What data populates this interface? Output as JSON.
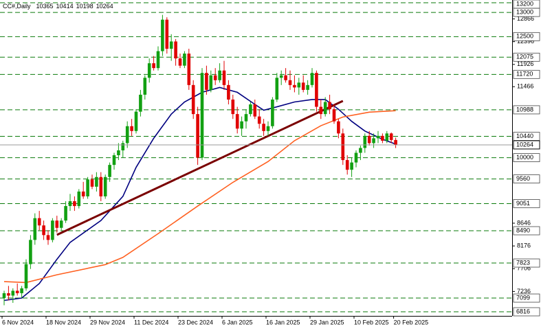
{
  "chart_data": {
    "type": "candlestick",
    "symbol": "CC#,Daily",
    "categories": [
      "6 Nov 2024",
      null,
      null,
      null,
      null,
      null,
      null,
      null,
      null,
      null,
      "18 Nov 2024",
      null,
      null,
      null,
      null,
      null,
      null,
      null,
      null,
      null,
      "29 Nov 2024",
      null,
      null,
      null,
      null,
      null,
      null,
      null,
      null,
      null,
      "11 Dec 2024",
      null,
      null,
      null,
      null,
      null,
      null,
      null,
      null,
      null,
      "23 Dec 2024",
      null,
      null,
      null,
      null,
      null,
      null,
      null,
      null,
      null,
      "6 Jan 2025",
      null,
      null,
      null,
      null,
      null,
      null,
      null,
      null,
      null,
      "16 Jan 2025",
      null,
      null,
      null,
      null,
      null,
      null,
      null,
      null,
      null,
      "29 Jan 2025",
      null,
      null,
      null,
      null,
      null,
      null,
      null,
      null,
      null,
      "10 Feb 2025",
      null,
      null,
      null,
      null,
      null,
      null,
      null,
      null,
      "20 Feb 2025"
    ],
    "open": [
      7100,
      7200,
      7150,
      7250,
      7200,
      7300,
      7800,
      8300,
      8750,
      8600,
      8400,
      8300,
      8700,
      8550,
      8700,
      9000,
      9100,
      9000,
      9300,
      9200,
      9550,
      9400,
      9600,
      9200,
      9600,
      9850,
      10050,
      10150,
      10300,
      10650,
      10550,
      10950,
      11300,
      11650,
      11950,
      11850,
      12200,
      12850,
      12250,
      12400,
      12050,
      11900,
      12150,
      11500,
      10900,
      10000,
      11750,
      11400,
      11700,
      11600,
      11800,
      11500,
      11200,
      10900,
      10600,
      10750,
      10900,
      11100,
      10850,
      10700,
      10550,
      10650,
      11200,
      11650,
      11700,
      11600,
      11500,
      11450,
      11550,
      11400,
      11500,
      11750,
      11050,
      10900,
      11150,
      11000,
      10750,
      10500,
      9950,
      9750,
      9900,
      10100,
      10200,
      10450,
      10300,
      10400,
      10450,
      10350,
      10500,
      10365
    ],
    "high": [
      7250,
      7350,
      7300,
      7400,
      7350,
      7900,
      8400,
      8850,
      8900,
      8700,
      8500,
      8750,
      8800,
      8750,
      9100,
      9250,
      9200,
      9350,
      9500,
      9600,
      9650,
      9700,
      9700,
      9650,
      9900,
      10100,
      10300,
      10350,
      10750,
      10800,
      11000,
      11400,
      11700,
      12050,
      12100,
      12300,
      12950,
      12900,
      12550,
      12450,
      12150,
      12200,
      12250,
      11600,
      11050,
      11850,
      11900,
      11800,
      11850,
      11950,
      12000,
      11600,
      11300,
      11050,
      10850,
      11000,
      11150,
      11200,
      11000,
      10800,
      10750,
      11250,
      11750,
      11800,
      11850,
      11800,
      11700,
      11650,
      11700,
      11600,
      11850,
      11800,
      11200,
      11250,
      11300,
      11100,
      10800,
      10600,
      10050,
      10000,
      10150,
      10250,
      10500,
      10550,
      10500,
      10550,
      10500,
      10550,
      10520,
      10414
    ],
    "low": [
      6950,
      7050,
      7000,
      7150,
      7100,
      7250,
      7700,
      8200,
      8500,
      8300,
      8200,
      8250,
      8450,
      8500,
      8650,
      8900,
      8900,
      8950,
      9150,
      9150,
      9350,
      9300,
      9100,
      9150,
      9500,
      9750,
      9950,
      10000,
      10200,
      10450,
      10500,
      10850,
      11200,
      11550,
      11800,
      11800,
      12100,
      12150,
      12000,
      11900,
      11850,
      11850,
      11400,
      10800,
      9850,
      9950,
      11300,
      11350,
      11500,
      11550,
      11400,
      11100,
      10800,
      10500,
      10450,
      10600,
      10850,
      10800,
      10600,
      10450,
      10450,
      10600,
      11150,
      11500,
      11550,
      11400,
      11350,
      11300,
      11350,
      11300,
      11450,
      10950,
      10800,
      10850,
      10900,
      10700,
      10400,
      9850,
      9650,
      9600,
      9800,
      9950,
      10100,
      10250,
      10200,
      10300,
      10300,
      10300,
      10300,
      10198
    ],
    "close": [
      7200,
      7150,
      7250,
      7200,
      7300,
      7800,
      8300,
      8750,
      8600,
      8400,
      8300,
      8700,
      8550,
      8700,
      9000,
      9100,
      9000,
      9300,
      9200,
      9550,
      9400,
      9600,
      9200,
      9600,
      9850,
      10050,
      10150,
      10300,
      10650,
      10550,
      10950,
      11300,
      11650,
      11950,
      11850,
      12200,
      12850,
      12250,
      12400,
      12050,
      11900,
      12150,
      11500,
      10900,
      10000,
      11750,
      11400,
      11700,
      11600,
      11800,
      11500,
      11200,
      10900,
      10600,
      10750,
      10900,
      11100,
      10850,
      10700,
      10550,
      10650,
      11200,
      11650,
      11700,
      11600,
      11500,
      11450,
      11550,
      11400,
      11500,
      11750,
      11050,
      10900,
      11150,
      11000,
      10750,
      10500,
      9950,
      9750,
      9900,
      10100,
      10200,
      10450,
      10300,
      10400,
      10450,
      10350,
      10500,
      10365,
      10264
    ],
    "up_color": "#12a012",
    "down_color": "#e00000",
    "ylim": [
      6816,
      13200
    ],
    "yticks": [
      12866,
      12396,
      11926,
      11466,
      8646,
      8176,
      7706,
      7236
    ],
    "levels": [
      13200,
      13000,
      12500,
      12075,
      11720,
      10988,
      10440,
      10000,
      9560,
      9051,
      8490,
      7823,
      7099,
      6816
    ],
    "level_color": "#0a7a0a",
    "lines": [
      {
        "color": "#000080",
        "x": [
          0,
          4,
          8,
          12,
          15,
          22,
          27,
          30,
          34,
          38,
          41,
          45,
          49,
          53,
          57,
          59,
          62,
          66,
          70,
          73,
          76,
          79,
          82,
          86,
          89
        ],
        "values": [
          7050,
          7100,
          7400,
          7900,
          8250,
          8700,
          9200,
          9800,
          10400,
          10900,
          11150,
          11350,
          11450,
          11350,
          11100,
          10980,
          11050,
          11150,
          11200,
          11200,
          11000,
          10750,
          10550,
          10380,
          10280
        ]
      },
      {
        "color": "#ff6020",
        "x": [
          0,
          5,
          12,
          23,
          27,
          35,
          44,
          52,
          60,
          66,
          72,
          77,
          83,
          89
        ],
        "values": [
          7440,
          7420,
          7580,
          7790,
          7940,
          8430,
          9000,
          9490,
          9920,
          10350,
          10660,
          10840,
          10940,
          10970
        ]
      }
    ],
    "trendline": {
      "color": "#7a0000",
      "x": [
        12,
        77
      ],
      "values": [
        8405,
        11171
      ]
    }
  }
}
